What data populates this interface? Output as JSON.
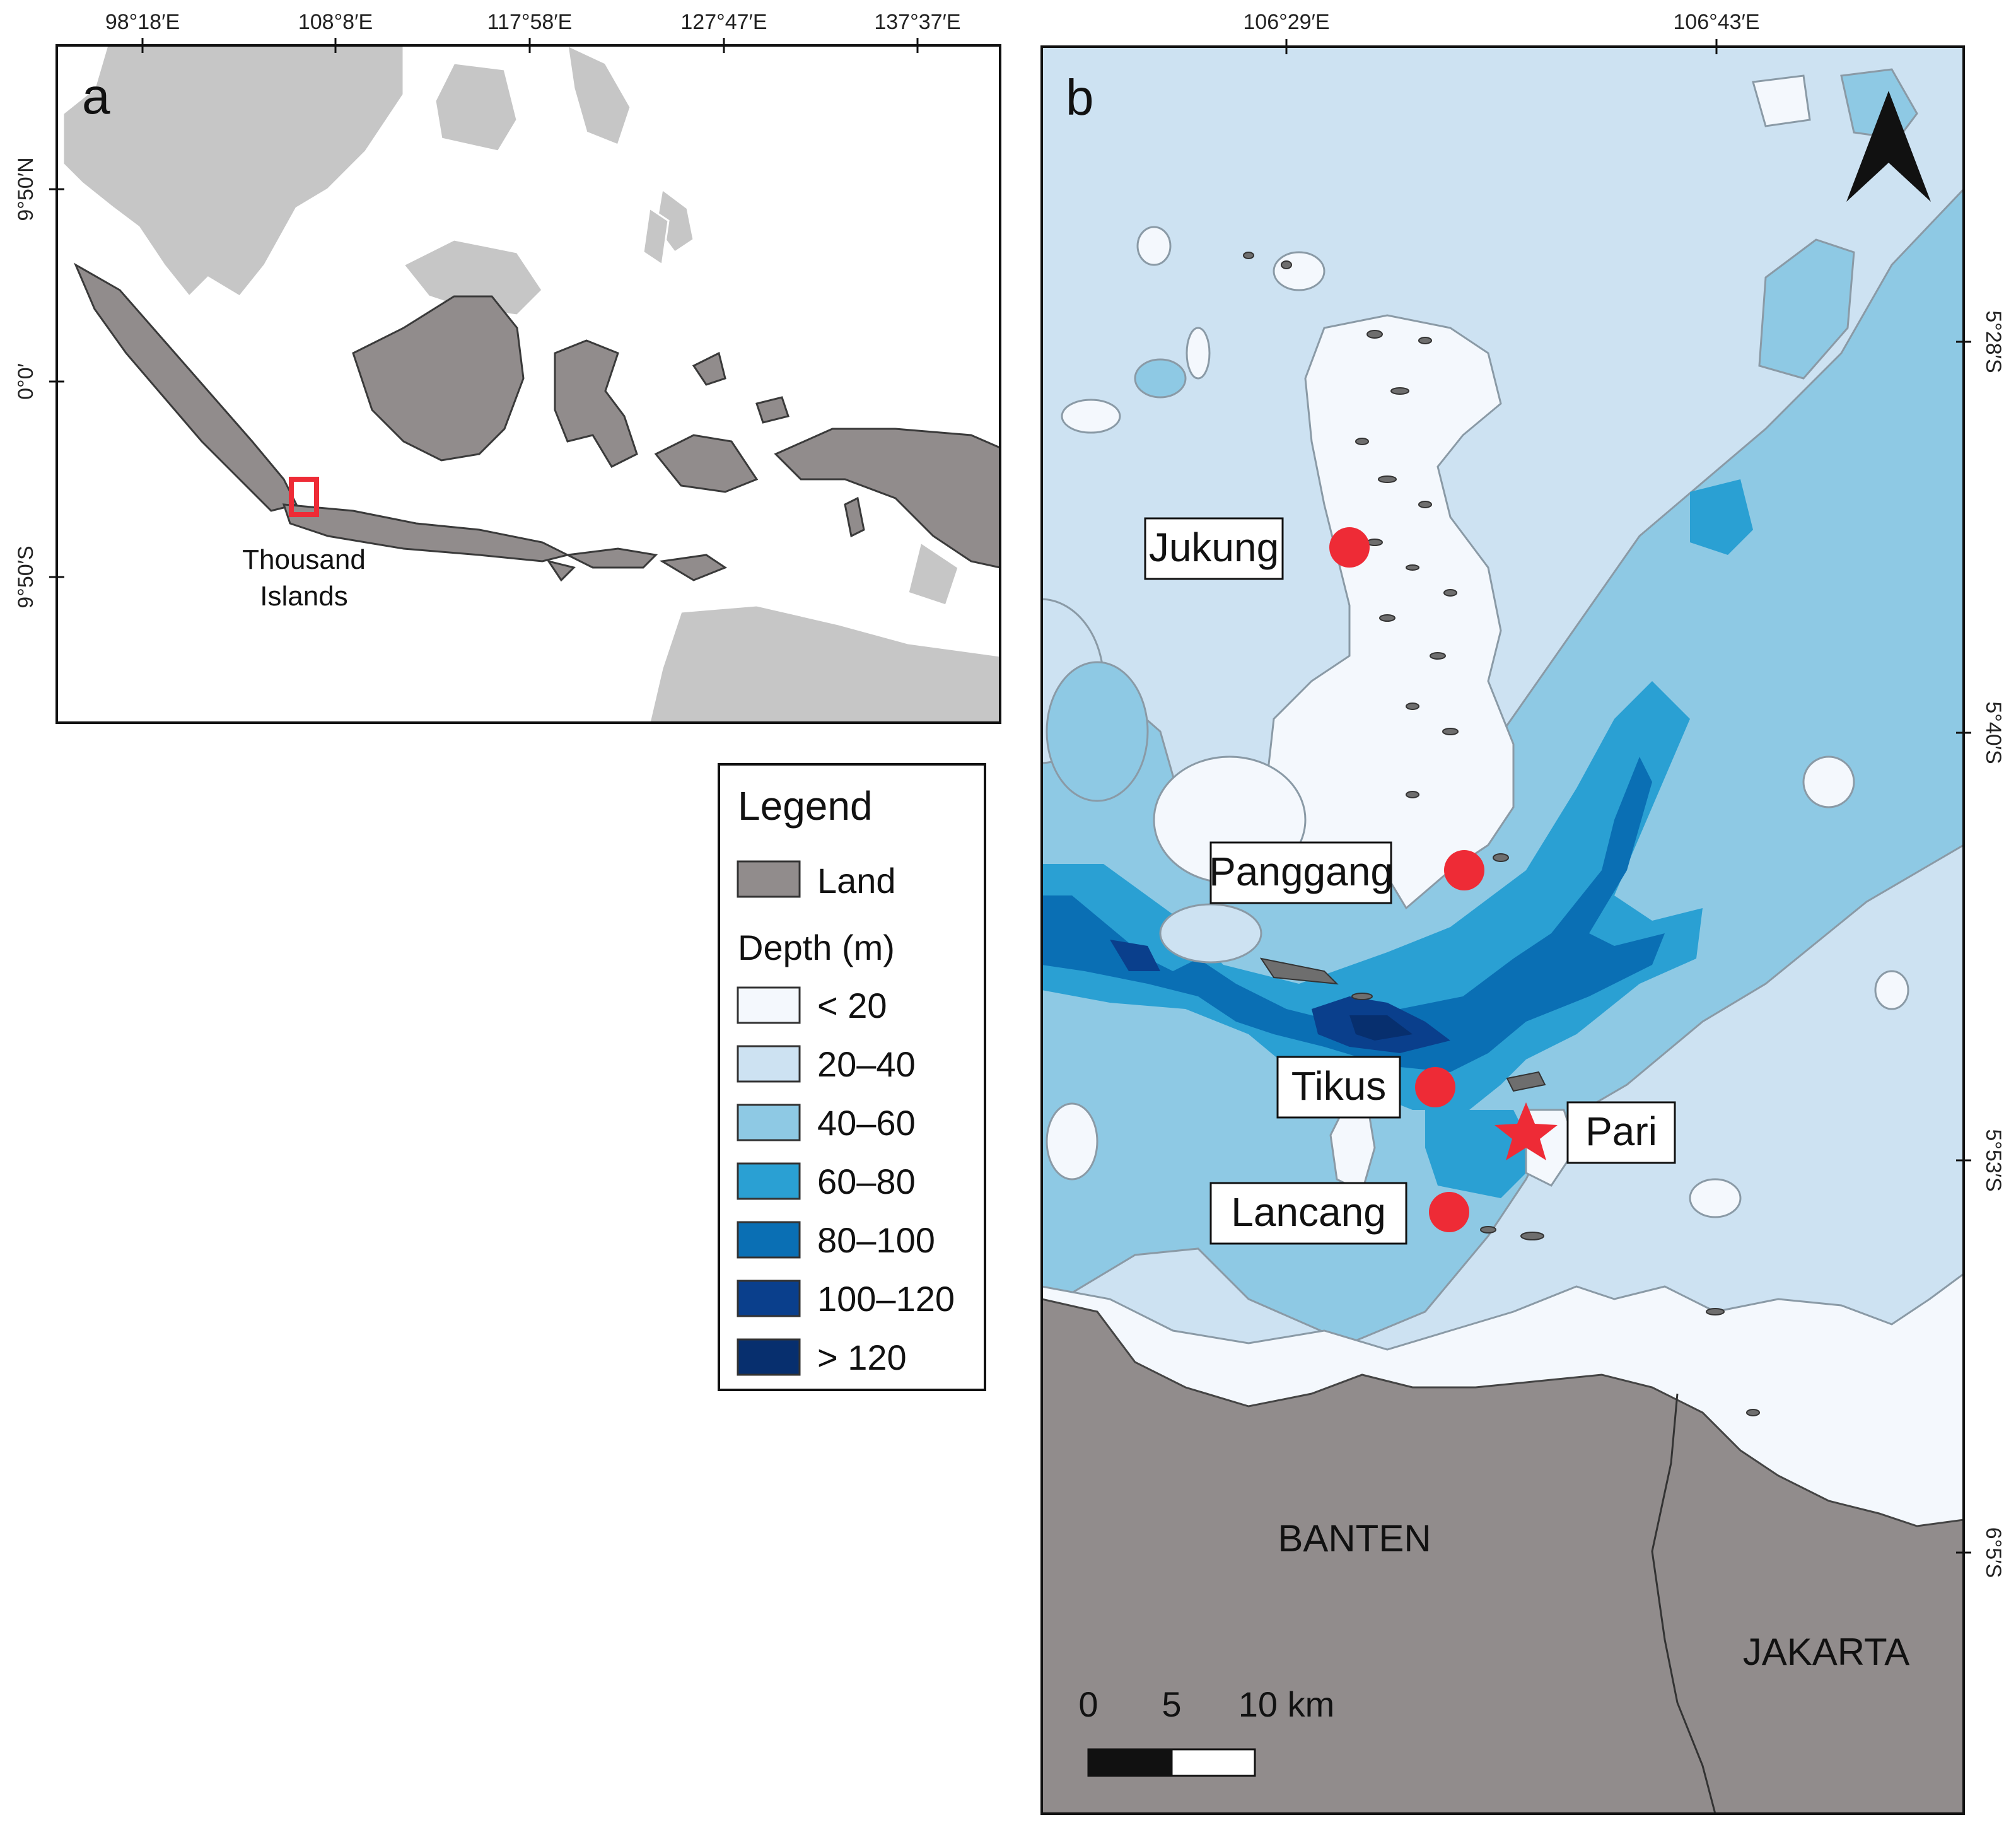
{
  "panel_a": {
    "letter": "a",
    "top_ticks": [
      "98°18′E",
      "108°8′E",
      "117°58′E",
      "127°47′E",
      "137°37′E"
    ],
    "left_ticks": [
      "9°50′N",
      "0°0′",
      "9°50′S"
    ],
    "inset_label_line1": "Thousand",
    "inset_label_line2": "Islands"
  },
  "panel_b": {
    "letter": "b",
    "top_ticks": [
      "106°29′E",
      "106°43′E"
    ],
    "right_ticks": [
      "5°28′S",
      "5°40′S",
      "5°53′S",
      "6°5′S"
    ],
    "sites": [
      {
        "label": "Jukung",
        "marker": "circle"
      },
      {
        "label": "Panggang",
        "marker": "circle"
      },
      {
        "label": "Tikus",
        "marker": "circle"
      },
      {
        "label": "Pari",
        "marker": "star"
      },
      {
        "label": "Lancang",
        "marker": "circle"
      }
    ],
    "regions": [
      "BANTEN",
      "JAKARTA"
    ],
    "scale_bar": {
      "labels": [
        "0",
        "5",
        "10 km"
      ]
    },
    "north_arrow_icon": "north-arrow-icon"
  },
  "legend": {
    "title": "Legend",
    "land_label": "Land",
    "depth_title": "Depth (m)",
    "classes": [
      {
        "label": "< 20",
        "color": "#f4f8fd"
      },
      {
        "label": "20–40",
        "color": "#cde2f2"
      },
      {
        "label": "40–60",
        "color": "#8ec9e4"
      },
      {
        "label": "60–80",
        "color": "#2aa0d3"
      },
      {
        "label": "80–100",
        "color": "#0a6fb4"
      },
      {
        "label": "100–120",
        "color": "#0a3f8c"
      },
      {
        "label": "> 120",
        "color": "#072f6e"
      }
    ]
  },
  "colors": {
    "land": "#918c8c",
    "other_land": "#c6c6c6",
    "marker": "#ee2b36"
  }
}
